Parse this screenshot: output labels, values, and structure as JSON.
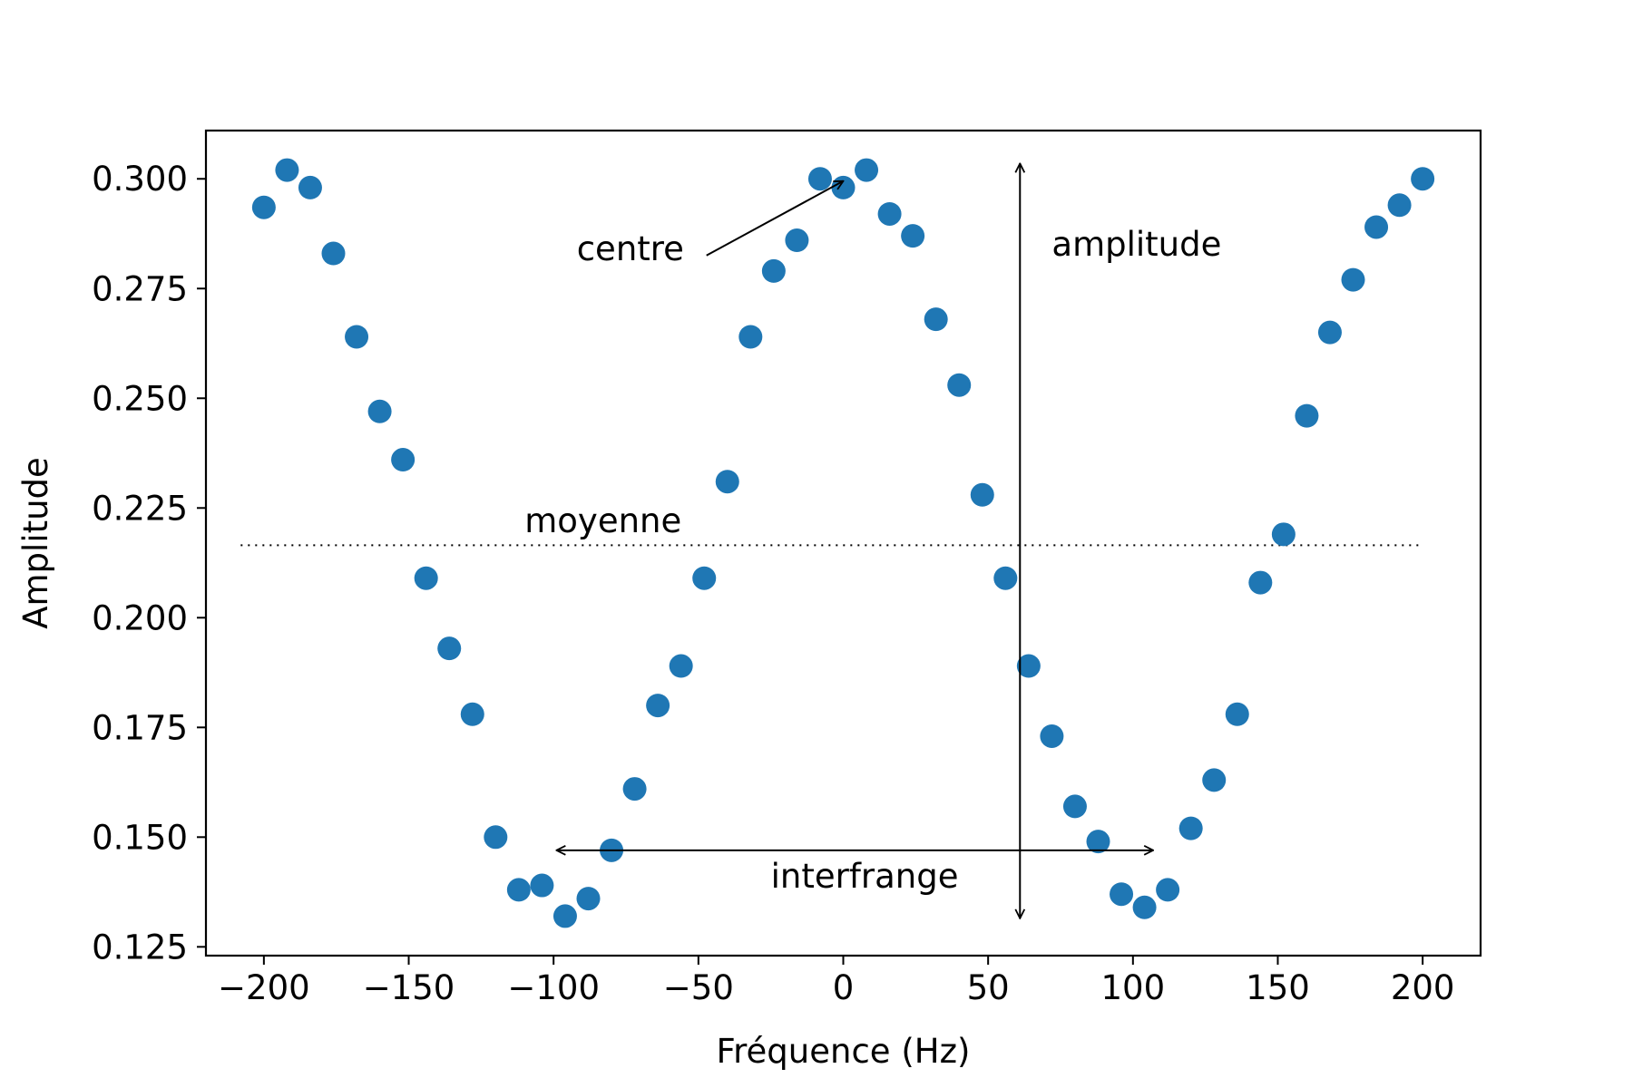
{
  "chart_data": {
    "type": "scatter",
    "xlabel": "Fréquence (Hz)",
    "ylabel": "Amplitude",
    "xlim": [
      -220,
      220
    ],
    "ylim": [
      0.123,
      0.311
    ],
    "x_ticks": [
      -200,
      -150,
      -100,
      -50,
      0,
      50,
      100,
      150,
      200
    ],
    "x_tick_labels": [
      "−200",
      "−150",
      "−100",
      "−50",
      "0",
      "50",
      "100",
      "150",
      "200"
    ],
    "y_ticks": [
      0.125,
      0.15,
      0.175,
      0.2,
      0.225,
      0.25,
      0.275,
      0.3
    ],
    "y_tick_labels": [
      "0.125",
      "0.150",
      "0.175",
      "0.200",
      "0.225",
      "0.250",
      "0.275",
      "0.300"
    ],
    "grid": false,
    "marker_color": "#1f77b4",
    "series": [
      {
        "x": [
          -200,
          -192,
          -184,
          -176,
          -168,
          -160,
          -152,
          -144,
          -136,
          -128,
          -120,
          -112,
          -104,
          -96,
          -88,
          -80,
          -72,
          -64,
          -56,
          -48,
          -40,
          -32,
          -24,
          -16,
          -8,
          0,
          8,
          16,
          24,
          32,
          40,
          48,
          56,
          64,
          72,
          80,
          88,
          96,
          104,
          112,
          120,
          128,
          136,
          144,
          152,
          160,
          168,
          176,
          184,
          192,
          200
        ],
        "y": [
          0.2935,
          0.302,
          0.298,
          0.283,
          0.264,
          0.247,
          0.236,
          0.209,
          0.193,
          0.178,
          0.15,
          0.138,
          0.139,
          0.132,
          0.136,
          0.147,
          0.161,
          0.18,
          0.189,
          0.209,
          0.231,
          0.264,
          0.279,
          0.286,
          0.3,
          0.298,
          0.302,
          0.292,
          0.287,
          0.268,
          0.253,
          0.228,
          0.209,
          0.189,
          0.173,
          0.157,
          0.149,
          0.137,
          0.134,
          0.138,
          0.152,
          0.163,
          0.178,
          0.208,
          0.219,
          0.246,
          0.265,
          0.277,
          0.289,
          0.294,
          0.3
        ]
      }
    ],
    "mean_line": {
      "y": 0.2165,
      "x_range": [
        -208,
        200
      ],
      "style": "dotted"
    },
    "annotations": {
      "centre": {
        "text": "centre",
        "text_x": -92,
        "text_y": 0.2815,
        "arrow_to_x": 0,
        "arrow_to_y": 0.2995
      },
      "moyenne": {
        "text": "moyenne",
        "x": -110,
        "y": 0.2195
      },
      "amplitude": {
        "text": "amplitude",
        "x": 72,
        "y": 0.2825,
        "arrow_x": 61,
        "arrow_y_range": [
          0.1315,
          0.3035
        ]
      },
      "interfrange": {
        "text": "interfrange",
        "x": -25,
        "y": 0.1385,
        "arrow_y": 0.147,
        "arrow_x_range": [
          -99,
          107
        ]
      }
    }
  }
}
